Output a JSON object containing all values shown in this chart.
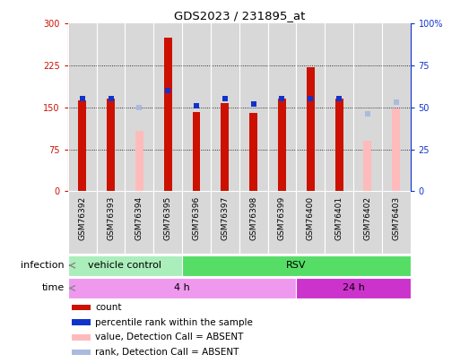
{
  "title": "GDS2023 / 231895_at",
  "samples": [
    "GSM76392",
    "GSM76393",
    "GSM76394",
    "GSM76395",
    "GSM76396",
    "GSM76397",
    "GSM76398",
    "GSM76399",
    "GSM76400",
    "GSM76401",
    "GSM76402",
    "GSM76403"
  ],
  "count_values": [
    163,
    165,
    null,
    275,
    142,
    157,
    140,
    165,
    222,
    165,
    null,
    null
  ],
  "count_absent_values": [
    null,
    null,
    108,
    null,
    null,
    null,
    null,
    null,
    null,
    null,
    90,
    148
  ],
  "rank_values": [
    55,
    55,
    null,
    60,
    51,
    55,
    52,
    55,
    55,
    55,
    null,
    null
  ],
  "rank_absent_values": [
    null,
    null,
    50,
    null,
    null,
    null,
    null,
    null,
    null,
    null,
    46,
    53
  ],
  "infection_groups": [
    {
      "label": "vehicle control",
      "start": 0,
      "end": 4,
      "color": "#aaeebb"
    },
    {
      "label": "RSV",
      "start": 4,
      "end": 12,
      "color": "#55dd66"
    }
  ],
  "time_groups": [
    {
      "label": "4 h",
      "start": 0,
      "end": 8,
      "color": "#ee99ee"
    },
    {
      "label": "24 h",
      "start": 8,
      "end": 12,
      "color": "#cc33cc"
    }
  ],
  "ylim_left": [
    0,
    300
  ],
  "ylim_right": [
    0,
    100
  ],
  "yticks_left": [
    0,
    75,
    150,
    225,
    300
  ],
  "yticks_right": [
    0,
    25,
    50,
    75,
    100
  ],
  "color_count": "#cc1100",
  "color_count_absent": "#ffbbbb",
  "color_rank": "#1133cc",
  "color_rank_absent": "#aabbdd",
  "legend_items": [
    {
      "color": "#cc1100",
      "label": "count"
    },
    {
      "color": "#1133cc",
      "label": "percentile rank within the sample"
    },
    {
      "color": "#ffbbbb",
      "label": "value, Detection Call = ABSENT"
    },
    {
      "color": "#aabbdd",
      "label": "rank, Detection Call = ABSENT"
    }
  ],
  "infection_label": "infection",
  "time_label": "time",
  "col_bg": "#d8d8d8",
  "plot_bg": "#ffffff"
}
